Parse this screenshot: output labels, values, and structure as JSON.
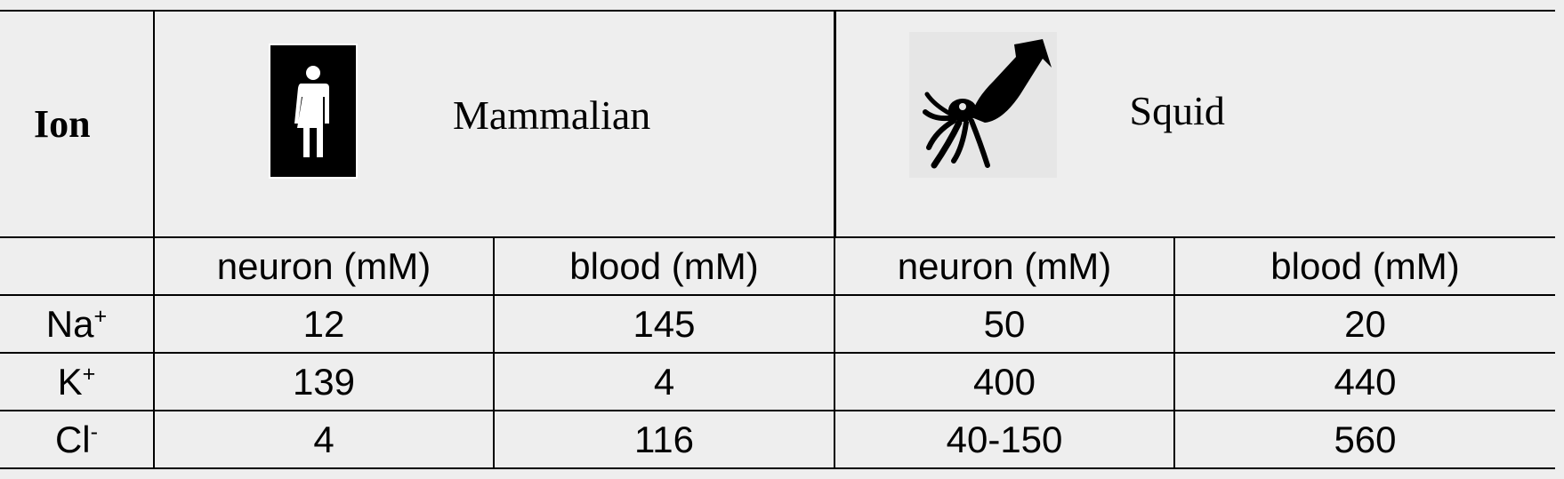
{
  "table": {
    "ion_header": "Ion",
    "species": [
      {
        "name": "Mammalian",
        "icon": "human-figure-icon"
      },
      {
        "name": "Squid",
        "icon": "squid-icon"
      }
    ],
    "units": [
      "neuron (mM)",
      "blood (mM)",
      "neuron (mM)",
      "blood (mM)"
    ],
    "rows": [
      {
        "ion": "Na",
        "charge": "+",
        "values": [
          "12",
          "145",
          "50",
          "20"
        ]
      },
      {
        "ion": "K",
        "charge": "+",
        "values": [
          "139",
          "4",
          "400",
          "440"
        ]
      },
      {
        "ion": "Cl",
        "charge": "-",
        "values": [
          "4",
          "116",
          "40-150",
          "560"
        ]
      }
    ]
  }
}
